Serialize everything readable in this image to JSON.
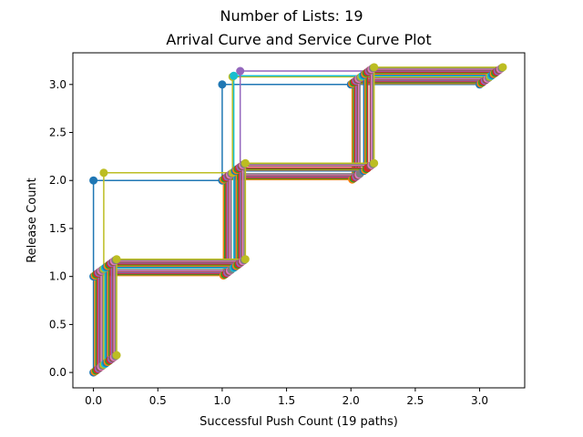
{
  "chart_data": {
    "type": "line",
    "suptitle": "Number of Lists: 19",
    "title": "Arrival Curve and Service Curve Plot",
    "xlabel": "Successful Push Count (19 paths)",
    "ylabel": "Release Count",
    "xlim": [
      -0.16,
      3.35
    ],
    "ylim": [
      -0.16,
      3.33
    ],
    "xticks": [
      "0.0",
      "0.5",
      "1.0",
      "1.5",
      "2.0",
      "2.5",
      "3.0"
    ],
    "yticks": [
      "0.0",
      "0.5",
      "1.0",
      "1.5",
      "2.0",
      "2.5",
      "3.0"
    ],
    "grid": false,
    "step_style": "horizontal-then-vertical",
    "series": [
      {
        "color": "#1f77b4",
        "points": [
          [
            0.0,
            0.0
          ],
          [
            0.0,
            1.0
          ],
          [
            0.0,
            2.0
          ],
          [
            1.0,
            2.0
          ],
          [
            1.0,
            3.0
          ],
          [
            2.0,
            3.0
          ],
          [
            3.0,
            3.0
          ]
        ]
      },
      {
        "color": "#ff7f0e",
        "points": [
          [
            0.01,
            0.01
          ],
          [
            0.01,
            1.01
          ],
          [
            1.01,
            1.01
          ],
          [
            1.01,
            2.01
          ],
          [
            2.01,
            2.01
          ],
          [
            2.01,
            3.01
          ],
          [
            3.01,
            3.01
          ]
        ]
      },
      {
        "color": "#2ca02c",
        "points": [
          [
            0.02,
            0.02
          ],
          [
            0.02,
            1.02
          ],
          [
            1.02,
            1.02
          ],
          [
            1.02,
            2.02
          ],
          [
            2.02,
            2.02
          ],
          [
            2.02,
            3.02
          ],
          [
            3.02,
            3.02
          ]
        ]
      },
      {
        "color": "#d62728",
        "points": [
          [
            0.03,
            0.03
          ],
          [
            0.03,
            1.03
          ],
          [
            1.03,
            1.03
          ],
          [
            1.03,
            2.03
          ],
          [
            2.03,
            2.03
          ],
          [
            2.03,
            3.03
          ],
          [
            3.03,
            3.03
          ]
        ]
      },
      {
        "color": "#9467bd",
        "points": [
          [
            0.04,
            0.04
          ],
          [
            0.04,
            1.04
          ],
          [
            1.04,
            1.04
          ],
          [
            1.04,
            2.04
          ],
          [
            2.04,
            2.04
          ],
          [
            2.04,
            3.04
          ],
          [
            3.04,
            3.04
          ]
        ]
      },
      {
        "color": "#8c564b",
        "points": [
          [
            0.05,
            0.05
          ],
          [
            0.05,
            1.05
          ],
          [
            1.05,
            1.05
          ],
          [
            1.05,
            2.05
          ],
          [
            2.05,
            2.05
          ],
          [
            2.05,
            3.05
          ],
          [
            3.05,
            3.05
          ]
        ]
      },
      {
        "color": "#e377c2",
        "points": [
          [
            0.06,
            0.06
          ],
          [
            0.06,
            1.06
          ],
          [
            1.06,
            1.06
          ],
          [
            1.06,
            2.06
          ],
          [
            2.06,
            2.06
          ],
          [
            2.06,
            3.06
          ],
          [
            3.06,
            3.06
          ]
        ]
      },
      {
        "color": "#7f7f7f",
        "points": [
          [
            0.07,
            0.07
          ],
          [
            0.07,
            1.07
          ],
          [
            1.07,
            1.07
          ],
          [
            1.07,
            2.07
          ],
          [
            2.07,
            2.07
          ],
          [
            2.07,
            3.07
          ],
          [
            3.07,
            3.07
          ]
        ]
      },
      {
        "color": "#bcbd22",
        "points": [
          [
            0.08,
            0.08
          ],
          [
            0.08,
            1.08
          ],
          [
            0.08,
            2.08
          ],
          [
            1.08,
            2.08
          ],
          [
            1.08,
            3.08
          ],
          [
            2.08,
            3.08
          ],
          [
            3.08,
            3.08
          ]
        ]
      },
      {
        "color": "#17becf",
        "points": [
          [
            0.09,
            0.09
          ],
          [
            0.09,
            1.09
          ],
          [
            1.09,
            1.09
          ],
          [
            1.09,
            3.09
          ],
          [
            2.09,
            3.09
          ],
          [
            3.09,
            3.09
          ]
        ]
      },
      {
        "color": "#1f77b4",
        "points": [
          [
            0.1,
            0.1
          ],
          [
            0.1,
            1.1
          ],
          [
            1.1,
            1.1
          ],
          [
            1.1,
            2.1
          ],
          [
            2.1,
            2.1
          ],
          [
            2.1,
            3.1
          ],
          [
            3.1,
            3.1
          ]
        ]
      },
      {
        "color": "#ff7f0e",
        "points": [
          [
            0.11,
            0.11
          ],
          [
            0.11,
            1.11
          ],
          [
            1.11,
            1.11
          ],
          [
            1.11,
            2.11
          ],
          [
            2.11,
            2.11
          ],
          [
            2.11,
            3.11
          ],
          [
            3.11,
            3.11
          ]
        ]
      },
      {
        "color": "#2ca02c",
        "points": [
          [
            0.12,
            0.12
          ],
          [
            0.12,
            1.12
          ],
          [
            1.12,
            1.12
          ],
          [
            1.12,
            2.12
          ],
          [
            2.12,
            2.12
          ],
          [
            2.12,
            3.12
          ],
          [
            3.12,
            3.12
          ]
        ]
      },
      {
        "color": "#d62728",
        "points": [
          [
            0.13,
            0.13
          ],
          [
            0.13,
            1.13
          ],
          [
            1.13,
            1.13
          ],
          [
            1.13,
            2.13
          ],
          [
            2.13,
            2.13
          ],
          [
            2.13,
            3.13
          ],
          [
            3.13,
            3.13
          ]
        ]
      },
      {
        "color": "#9467bd",
        "points": [
          [
            0.14,
            0.14
          ],
          [
            0.14,
            1.14
          ],
          [
            1.14,
            1.14
          ],
          [
            1.14,
            2.14
          ],
          [
            1.14,
            3.14
          ],
          [
            2.14,
            3.14
          ],
          [
            3.14,
            3.14
          ]
        ]
      },
      {
        "color": "#8c564b",
        "points": [
          [
            0.15,
            0.15
          ],
          [
            0.15,
            1.15
          ],
          [
            1.15,
            1.15
          ],
          [
            1.15,
            2.15
          ],
          [
            2.15,
            2.15
          ],
          [
            2.15,
            3.15
          ],
          [
            3.15,
            3.15
          ]
        ]
      },
      {
        "color": "#e377c2",
        "points": [
          [
            0.16,
            0.16
          ],
          [
            0.16,
            1.16
          ],
          [
            1.16,
            1.16
          ],
          [
            1.16,
            2.16
          ],
          [
            2.16,
            2.16
          ],
          [
            2.16,
            3.16
          ],
          [
            3.16,
            3.16
          ]
        ]
      },
      {
        "color": "#7f7f7f",
        "points": [
          [
            0.17,
            0.17
          ],
          [
            0.17,
            1.17
          ],
          [
            1.17,
            1.17
          ],
          [
            1.17,
            2.17
          ],
          [
            2.17,
            2.17
          ],
          [
            2.17,
            3.17
          ],
          [
            3.17,
            3.17
          ]
        ]
      },
      {
        "color": "#bcbd22",
        "points": [
          [
            0.18,
            0.18
          ],
          [
            0.18,
            1.18
          ],
          [
            1.18,
            1.18
          ],
          [
            1.18,
            2.18
          ],
          [
            2.18,
            2.18
          ],
          [
            2.18,
            3.18
          ],
          [
            3.18,
            3.18
          ]
        ]
      }
    ]
  }
}
